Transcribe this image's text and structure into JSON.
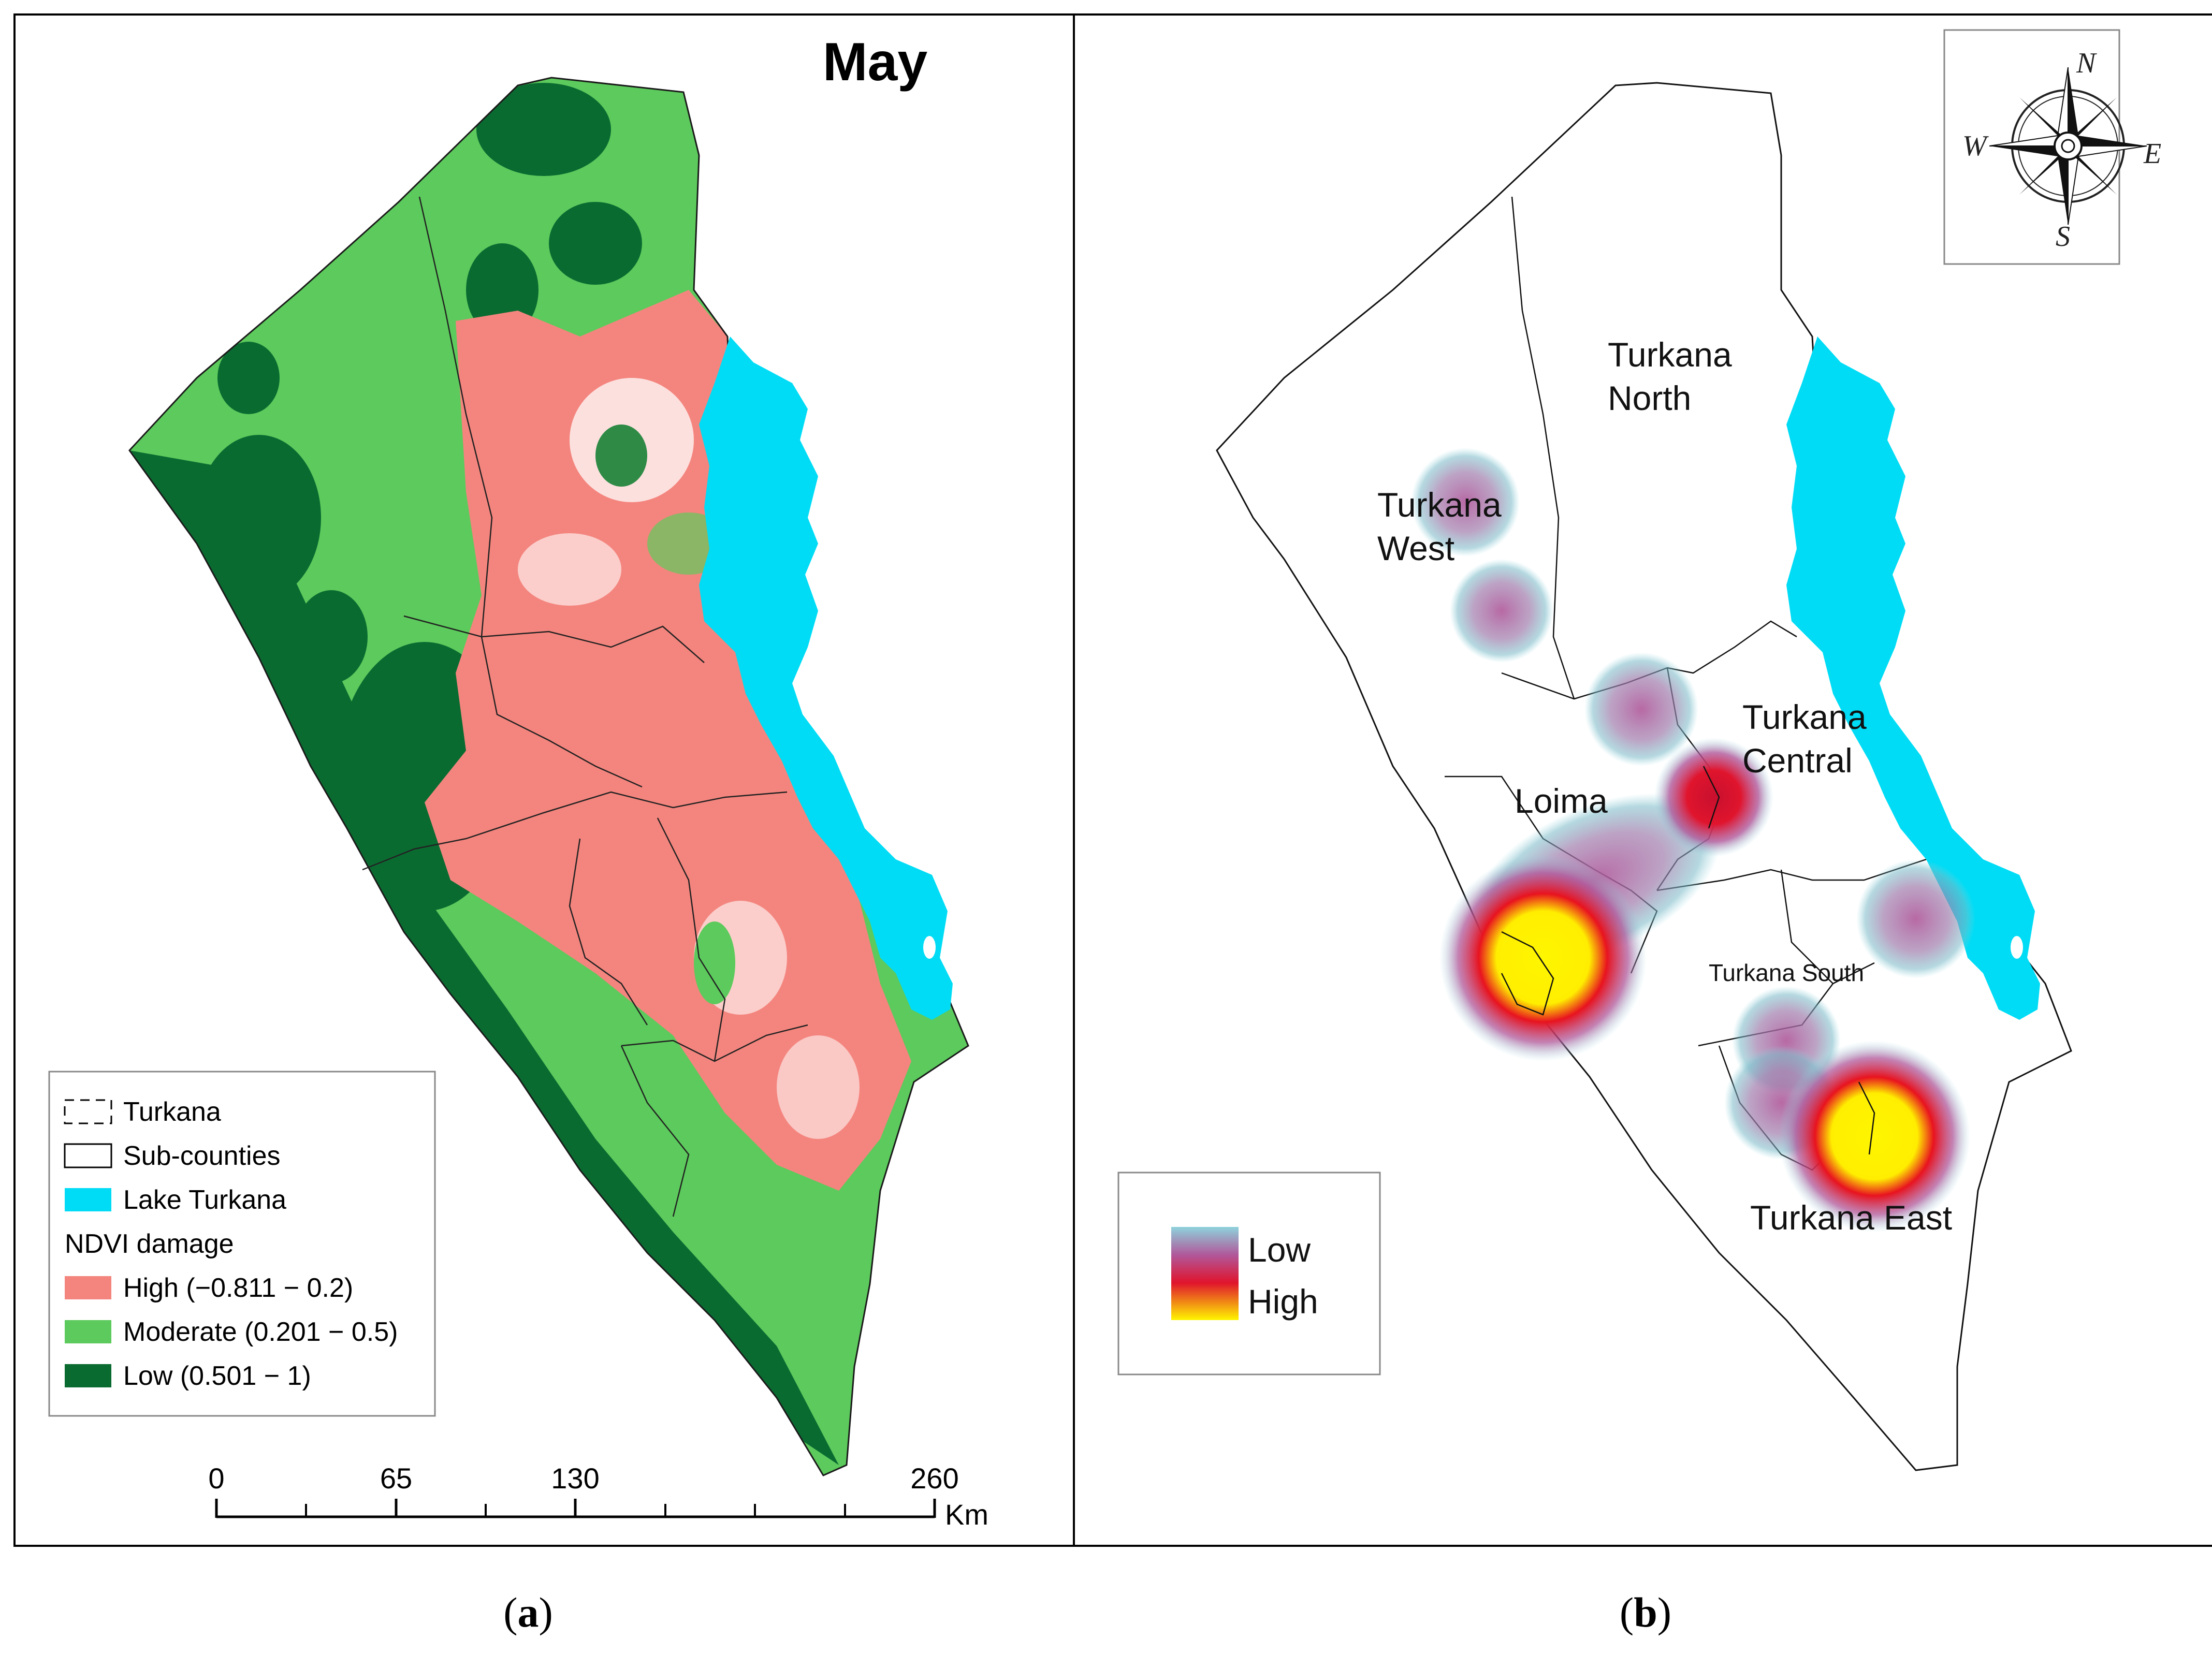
{
  "panel_a": {
    "title": "May",
    "legend": {
      "items": [
        {
          "label": "Turkana",
          "symbol": "dashed-outline"
        },
        {
          "label": "Sub-counties",
          "symbol": "solid-outline"
        },
        {
          "label": "Lake Turkana",
          "symbol": "fill",
          "color": "#00dcf5"
        }
      ],
      "group_title": "NDVI damage",
      "classes": [
        {
          "label": "High (−0.811 − 0.2)",
          "color": "#f4857e"
        },
        {
          "label": "Moderate (0.201 − 0.5)",
          "color": "#5cca5c"
        },
        {
          "label": "Low (0.501 − 1)",
          "color": "#0a6b31"
        }
      ]
    },
    "scale_bar": {
      "ticks": [
        "0",
        "65",
        "130",
        "260"
      ],
      "unit": "Km"
    }
  },
  "panel_b": {
    "subcounty_labels": {
      "north_1": "Turkana",
      "north_2": "North",
      "west_1": "Turkana",
      "west_2": "West",
      "central_1": "Turkana",
      "central_2": "Central",
      "loima": "Loima",
      "south": "Turkana South",
      "east": "Turkana East"
    },
    "compass": {
      "n": "N",
      "s": "S",
      "e": "E",
      "w": "W"
    },
    "legend": {
      "low": "Low",
      "high": "High"
    }
  },
  "captions": {
    "a": "a",
    "b": "b"
  },
  "colors": {
    "lake": "#00dcf5",
    "ndvi_high": "#f4857e",
    "ndvi_moderate": "#5cca5c",
    "ndvi_low": "#0a6b31"
  }
}
